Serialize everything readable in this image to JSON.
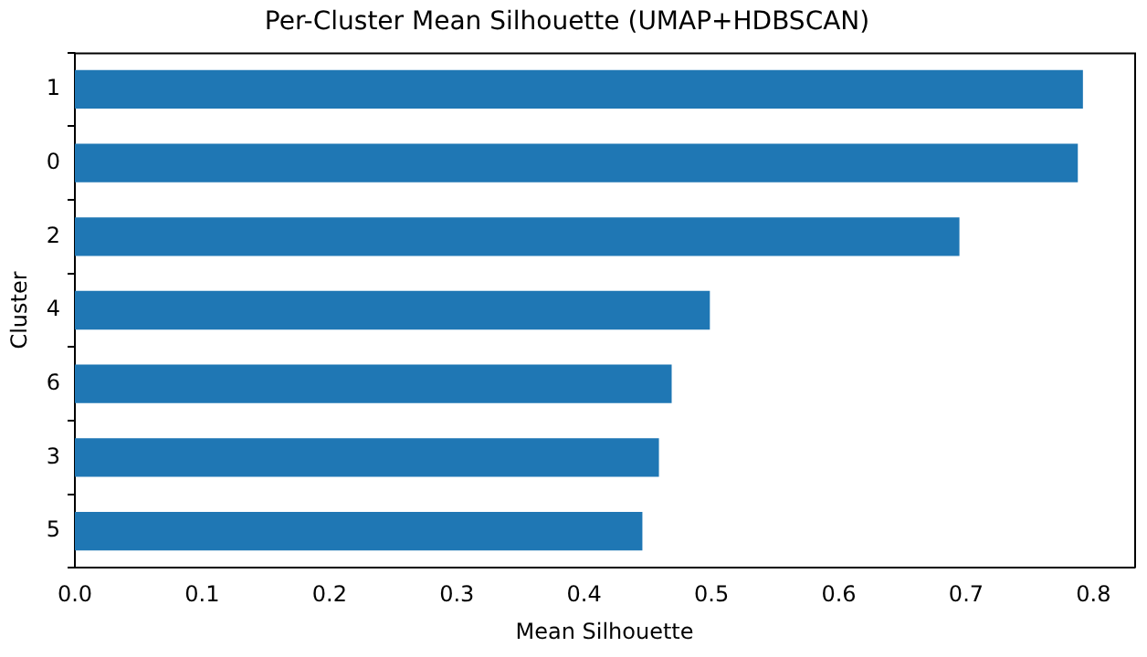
{
  "chart_data": {
    "type": "bar",
    "orientation": "horizontal",
    "title": "Per-Cluster Mean Silhouette (UMAP+HDBSCAN)",
    "xlabel": "Mean Silhouette",
    "ylabel": "Cluster",
    "categories": [
      "1",
      "0",
      "2",
      "4",
      "6",
      "3",
      "5"
    ],
    "values": [
      0.791,
      0.787,
      0.694,
      0.498,
      0.468,
      0.458,
      0.445
    ],
    "color": "#1f77b4",
    "xlim": [
      0,
      0.832
    ],
    "xticks": [
      {
        "value": 0,
        "label": "0.0"
      },
      0.1,
      0.2,
      0.3,
      0.4,
      0.5,
      0.6,
      0.7,
      0.8
    ],
    "grid": false,
    "legend": false
  }
}
